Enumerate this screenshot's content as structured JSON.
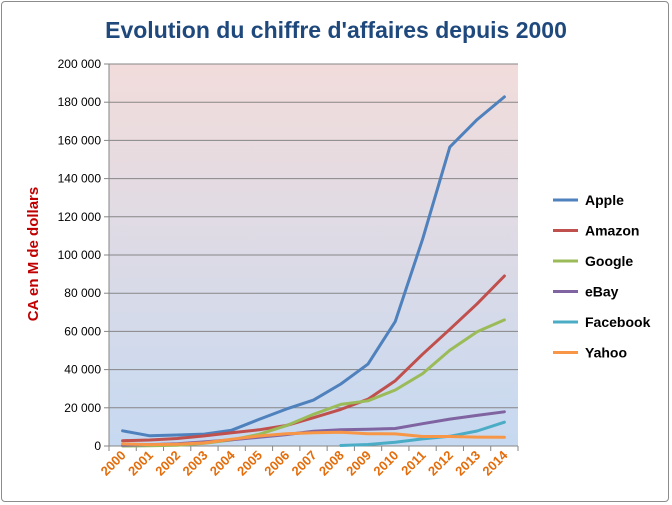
{
  "chart_data": {
    "type": "line",
    "title": "Evolution du chiffre d'affaires depuis 2000",
    "xlabel": "",
    "ylabel": "CA en M de dollars",
    "categories": [
      "2000",
      "2001",
      "2002",
      "2003",
      "2004",
      "2005",
      "2006",
      "2007",
      "2008",
      "2009",
      "2010",
      "2011",
      "2012",
      "2013",
      "2014"
    ],
    "ylim": [
      0,
      200000
    ],
    "yticks": [
      0,
      20000,
      40000,
      60000,
      80000,
      100000,
      120000,
      140000,
      160000,
      180000,
      200000
    ],
    "ytick_labels": [
      "0",
      "20 000",
      "40 000",
      "60 000",
      "80 000",
      "100 000",
      "120 000",
      "140 000",
      "160 000",
      "180 000",
      "200 000"
    ],
    "grid": true,
    "legend_position": "right",
    "colors": {
      "title": "#1f497d",
      "ylabel": "#c00000",
      "xtick": "#e46c0a",
      "plot_top": "#f2dcdb",
      "plot_bottom": "#c6d9f1",
      "gridline": "#868686"
    },
    "series": [
      {
        "name": "Apple",
        "color": "#4f81bd",
        "values": [
          7983,
          5363,
          5742,
          6207,
          8279,
          13931,
          19315,
          24006,
          32479,
          42905,
          65225,
          108249,
          156508,
          170910,
          182795
        ]
      },
      {
        "name": "Amazon",
        "color": "#c0504d",
        "values": [
          2762,
          3122,
          3933,
          5264,
          6921,
          8490,
          10711,
          14835,
          19166,
          24509,
          34204,
          48077,
          61093,
          74452,
          88988
        ]
      },
      {
        "name": "Google",
        "color": "#9bbb59",
        "values": [
          19,
          86,
          440,
          1466,
          3189,
          6139,
          10605,
          16594,
          21796,
          23651,
          29321,
          37905,
          50175,
          59825,
          66001
        ]
      },
      {
        "name": "eBay",
        "color": "#8064a2",
        "values": [
          431,
          749,
          1214,
          2165,
          3271,
          4552,
          5970,
          7672,
          8541,
          8727,
          9156,
          11652,
          14072,
          16047,
          17902
        ]
      },
      {
        "name": "Facebook",
        "color": "#4bacc6",
        "values": [
          null,
          null,
          null,
          null,
          null,
          null,
          null,
          null,
          272,
          777,
          1974,
          3711,
          5089,
          7872,
          12466
        ]
      },
      {
        "name": "Yahoo",
        "color": "#f79646",
        "values": [
          1110,
          717,
          953,
          1625,
          3574,
          5258,
          6426,
          6969,
          7209,
          6460,
          6325,
          4984,
          4987,
          4680,
          4618
        ]
      }
    ]
  }
}
